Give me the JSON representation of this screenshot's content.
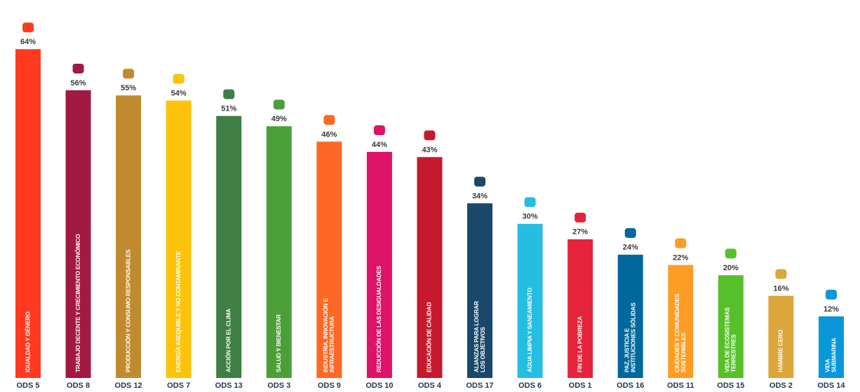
{
  "chart_data": {
    "type": "bar",
    "categories": [
      "ODS 5",
      "ODS 8",
      "ODS 12",
      "ODS 7",
      "ODS 13",
      "ODS 3",
      "ODS 9",
      "ODS 10",
      "ODS 4",
      "ODS 17",
      "ODS 6",
      "ODS 1",
      "ODS 16",
      "ODS 11",
      "ODS 15",
      "ODS 2",
      "ODS 14"
    ],
    "values": [
      64,
      56,
      55,
      54,
      51,
      49,
      46,
      44,
      43,
      34,
      30,
      27,
      24,
      22,
      20,
      16,
      12
    ],
    "value_labels": [
      "64%",
      "56%",
      "55%",
      "54%",
      "51%",
      "49%",
      "46%",
      "44%",
      "43%",
      "34%",
      "30%",
      "27%",
      "24%",
      "22%",
      "20%",
      "16%",
      "12%"
    ],
    "bar_labels": [
      [
        "IGUALDAD Y GÉNERO"
      ],
      [
        "TRABAJO DECENTE Y CRECIMIENTO ECONÓMICO"
      ],
      [
        "PRODUCCIÓN Y CONSUMO RESPONSABLES"
      ],
      [
        "ENERGÍA ASEQUIBLE Y NO CONTAMINANTE"
      ],
      [
        "ACCIÓN POR EL CLIMA"
      ],
      [
        "SALUD Y BIENESTAR"
      ],
      [
        "INDUSTRIA, INNOVACIÓN E",
        "INFRAESTRUCTURA"
      ],
      [
        "REDUCCIÓN DE LAS DESIGUALDADES"
      ],
      [
        "EDUCACIÓN DE CALIDAD"
      ],
      [
        "ALIANZAS PARA LOGRAR",
        "LOS OBJETIVOS"
      ],
      [
        "AGUA LIMPIA Y SANEAMIENTO"
      ],
      [
        "FIN DE LA POBREZA"
      ],
      [
        "PAZ, JUSTICIA E",
        "INSTITUCIONES SÓLIDAS"
      ],
      [
        "CIUDADES Y COMUNIDADES",
        "SOSTENIBLES"
      ],
      [
        "VIDA DE ECOSISTEMAS",
        "TERRESTRES"
      ],
      [
        "HAMBRE CERO"
      ],
      [
        "VIDA",
        "SUBMARINA"
      ]
    ],
    "colors": [
      "#ff3a21",
      "#a21942",
      "#bf8b2e",
      "#fcc30b",
      "#3f7e44",
      "#4c9f38",
      "#fd6925",
      "#dd1367",
      "#c5192d",
      "#19486a",
      "#26bde2",
      "#e5243b",
      "#00689d",
      "#fd9d24",
      "#56c02b",
      "#dda63a",
      "#0a97d9"
    ]
  }
}
